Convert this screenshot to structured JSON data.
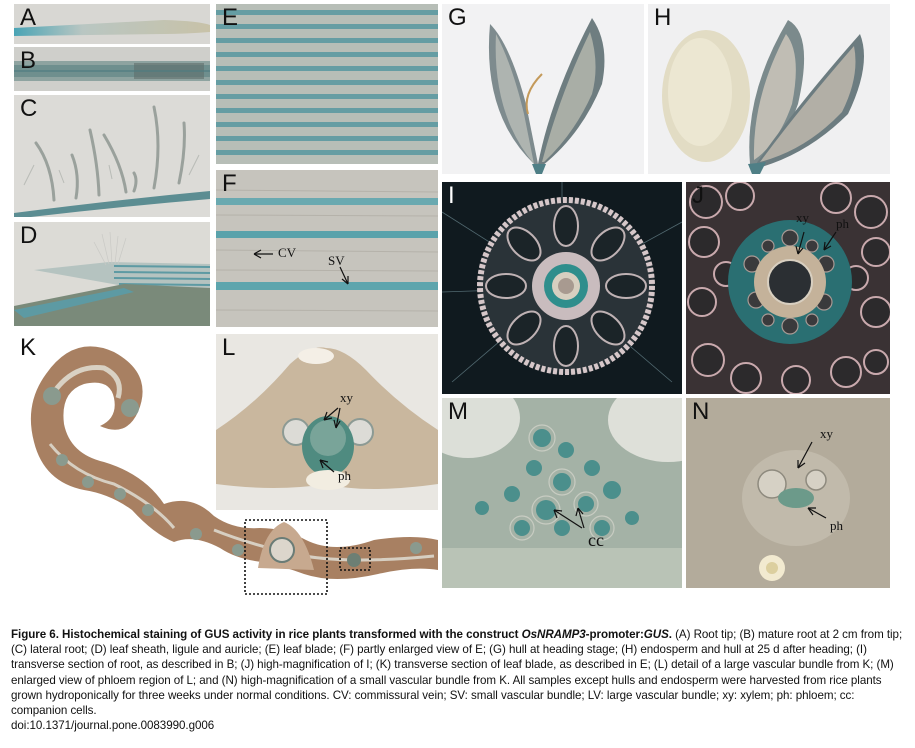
{
  "panels": {
    "A": {
      "label": "A"
    },
    "B": {
      "label": "B"
    },
    "C": {
      "label": "C"
    },
    "D": {
      "label": "D"
    },
    "E": {
      "label": "E"
    },
    "F": {
      "label": "F",
      "annotations": {
        "cv": "CV",
        "sv": "SV"
      }
    },
    "G": {
      "label": "G"
    },
    "H": {
      "label": "H"
    },
    "I": {
      "label": "I"
    },
    "J": {
      "label": "J",
      "annotations": {
        "xy": "xy",
        "ph": "ph"
      }
    },
    "K": {
      "label": "K"
    },
    "L": {
      "label": "L",
      "annotations": {
        "xy": "xy",
        "ph": "ph"
      }
    },
    "M": {
      "label": "M",
      "annotations": {
        "cc": "cc"
      }
    },
    "N": {
      "label": "N",
      "annotations": {
        "xy": "xy",
        "ph": "ph"
      }
    }
  },
  "caption": {
    "title_prefix": "Figure 6. Histochemical staining of GUS activity in rice plants transformed with the construct ",
    "construct": "OsNRAMP3",
    "title_mid": "-promoter:",
    "gene": "GUS",
    "title_end": ".",
    "body": " (A) Root tip; (B) mature root at 2 cm from tip; (C) lateral root; (D) leaf sheath, ligule and auricle; (E) leaf blade; (F) partly enlarged view of E; (G) hull at heading stage; (H) endosperm and hull at 25 d after heading; (I) transverse section of root, as described in B; (J) high-magnification of I; (K) transverse section of leaf blade, as described in E; (L) detail of a large vascular bundle from K; (M) enlarged view of phloem region of L; and (N) high-magnification of a small vascular bundle from K. All samples except hulls and endosperm were harvested from rice plants grown hydroponically for three weeks under normal conditions. CV: commissural vein; SV: small vascular bundle; LV: large vascular bundle; xy: xylem; ph: phloem; cc: companion cells.",
    "doi": "doi:10.1371/journal.pone.0083990.g006"
  }
}
